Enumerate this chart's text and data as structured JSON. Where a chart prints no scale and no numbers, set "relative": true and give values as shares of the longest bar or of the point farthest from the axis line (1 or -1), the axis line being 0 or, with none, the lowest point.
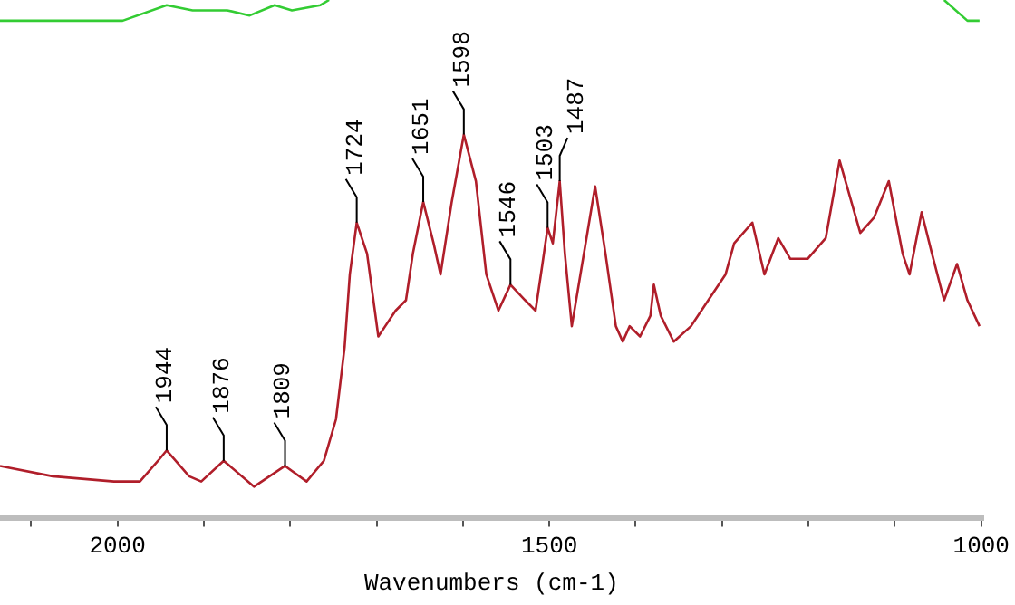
{
  "chart_data": {
    "type": "line",
    "relative": true,
    "xlabel": "Wavenumbers (cm-1)",
    "xlim": [
      2136,
      998
    ],
    "xticks": [
      {
        "value": 2100,
        "label": null
      },
      2000,
      {
        "value": 1900,
        "label": null
      },
      {
        "value": 1800,
        "label": null
      },
      {
        "value": 1700,
        "label": null
      },
      {
        "value": 1600,
        "label": null
      },
      1500,
      {
        "value": 1400,
        "label": null
      },
      {
        "value": 1300,
        "label": null
      },
      {
        "value": 1200,
        "label": null
      },
      {
        "value": 1100,
        "label": null
      },
      1000
    ],
    "tick_labels": "x",
    "grid": false,
    "legend": false,
    "series": [
      {
        "color": "#33cc33",
        "x": [
          2136,
          2069,
          1994,
          1943,
          1913,
          1873,
          1847,
          1818,
          1798,
          1765,
          1755,
          1500,
          1043,
          1016,
          1002
        ],
        "values": [
          0.96,
          0.96,
          0.96,
          0.99,
          0.98,
          0.98,
          0.97,
          0.99,
          0.98,
          0.99,
          1.0,
          null,
          1.0,
          0.96,
          0.96
        ]
      },
      {
        "color": "#b01e2a",
        "x": [
          2136,
          2075,
          2004,
          1974,
          1953,
          1943,
          1917,
          1903,
          1877,
          1842,
          1806,
          1781,
          1761,
          1747,
          1737,
          1731,
          1723,
          1711,
          1698,
          1690,
          1678,
          1666,
          1658,
          1646,
          1634,
          1626,
          1613,
          1599,
          1585,
          1573,
          1559,
          1545,
          1528,
          1516,
          1508,
          1502,
          1496,
          1488,
          1482,
          1474,
          1464,
          1447,
          1435,
          1423,
          1415,
          1407,
          1395,
          1383,
          1379,
          1371,
          1356,
          1336,
          1316,
          1296,
          1286,
          1265,
          1251,
          1235,
          1221,
          1201,
          1180,
          1164,
          1140,
          1124,
          1107,
          1091,
          1083,
          1069,
          1057,
          1043,
          1028,
          1016,
          1002
        ],
        "values": [
          0.1,
          0.08,
          0.07,
          0.07,
          0.11,
          0.13,
          0.08,
          0.07,
          0.11,
          0.06,
          0.1,
          0.07,
          0.11,
          0.19,
          0.33,
          0.47,
          0.57,
          0.51,
          0.35,
          0.37,
          0.4,
          0.42,
          0.51,
          0.61,
          0.53,
          0.47,
          0.61,
          0.74,
          0.65,
          0.47,
          0.4,
          0.45,
          0.42,
          0.4,
          0.49,
          0.56,
          0.53,
          0.65,
          0.51,
          0.37,
          0.47,
          0.64,
          0.51,
          0.37,
          0.34,
          0.37,
          0.35,
          0.39,
          0.45,
          0.39,
          0.34,
          0.37,
          0.42,
          0.47,
          0.53,
          0.57,
          0.47,
          0.54,
          0.5,
          0.5,
          0.54,
          0.69,
          0.55,
          0.58,
          0.65,
          0.51,
          0.47,
          0.59,
          0.51,
          0.42,
          0.49,
          0.42,
          0.37
        ]
      }
    ],
    "annotations": [
      {
        "text": "1944",
        "x": 1943,
        "y": 0.13
      },
      {
        "text": "1876",
        "x": 1877,
        "y": 0.11
      },
      {
        "text": "1809",
        "x": 1806,
        "y": 0.1
      },
      {
        "text": "1724",
        "x": 1723,
        "y": 0.57
      },
      {
        "text": "1651",
        "x": 1646,
        "y": 0.61
      },
      {
        "text": "1598",
        "x": 1599,
        "y": 0.74
      },
      {
        "text": "1546",
        "x": 1545,
        "y": 0.45
      },
      {
        "text": "1503",
        "x": 1502,
        "y": 0.56
      },
      {
        "text": "1487",
        "x": 1488,
        "y": 0.65
      }
    ]
  }
}
